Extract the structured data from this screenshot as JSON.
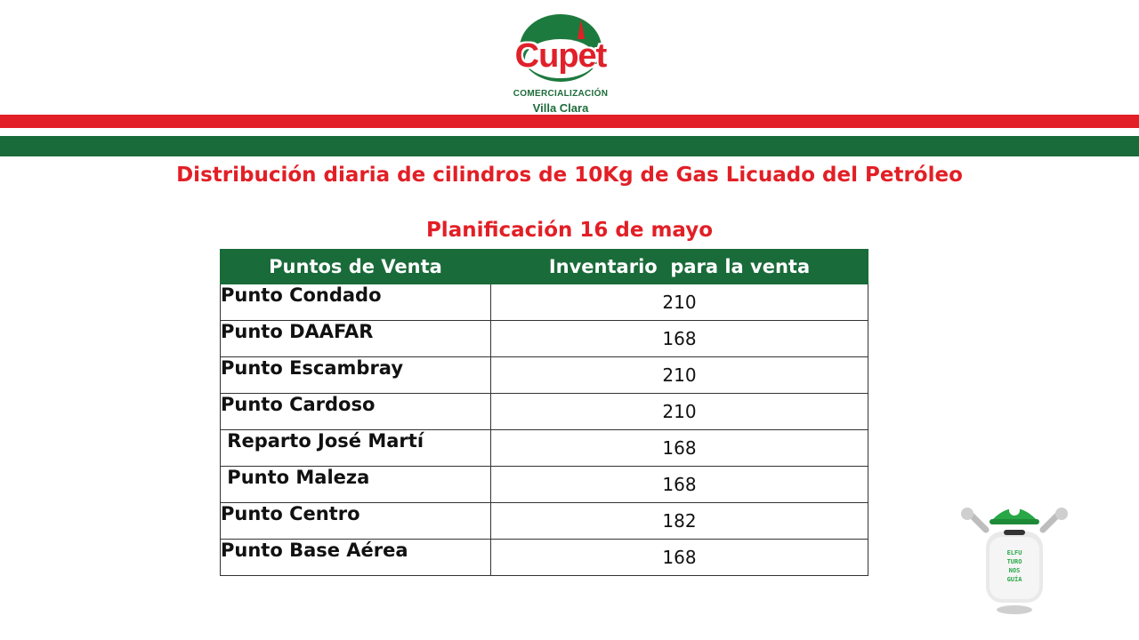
{
  "logo": {
    "brand": "Cupet",
    "line1": "COMERCIALIZACIÓN",
    "line2": "Villa Clara"
  },
  "title": "Distribución diaria de cilindros de 10Kg de Gas Licuado del Petróleo",
  "subtitle": "Planificación 16 de mayo",
  "table": {
    "headers": [
      "Puntos de Venta",
      "Inventario  para la venta"
    ],
    "rows": [
      {
        "name": "Punto Condado",
        "value": "210"
      },
      {
        "name": "Punto DAAFAR",
        "value": "168"
      },
      {
        "name": "Punto Escambray",
        "value": "210"
      },
      {
        "name": "Punto Cardoso",
        "value": "210"
      },
      {
        "name": " Reparto José Martí",
        "value": "168"
      },
      {
        "name": " Punto Maleza",
        "value": "168"
      },
      {
        "name": "Punto Centro",
        "value": "182"
      },
      {
        "name": "Punto Base Aérea",
        "value": "168"
      }
    ]
  },
  "colors": {
    "red": "#e21f26",
    "green": "#1a6b3a"
  },
  "mascot": {
    "icon": "gas-cylinder-mascot-icon",
    "text": "EL FUTURO NOS GUÍA"
  }
}
